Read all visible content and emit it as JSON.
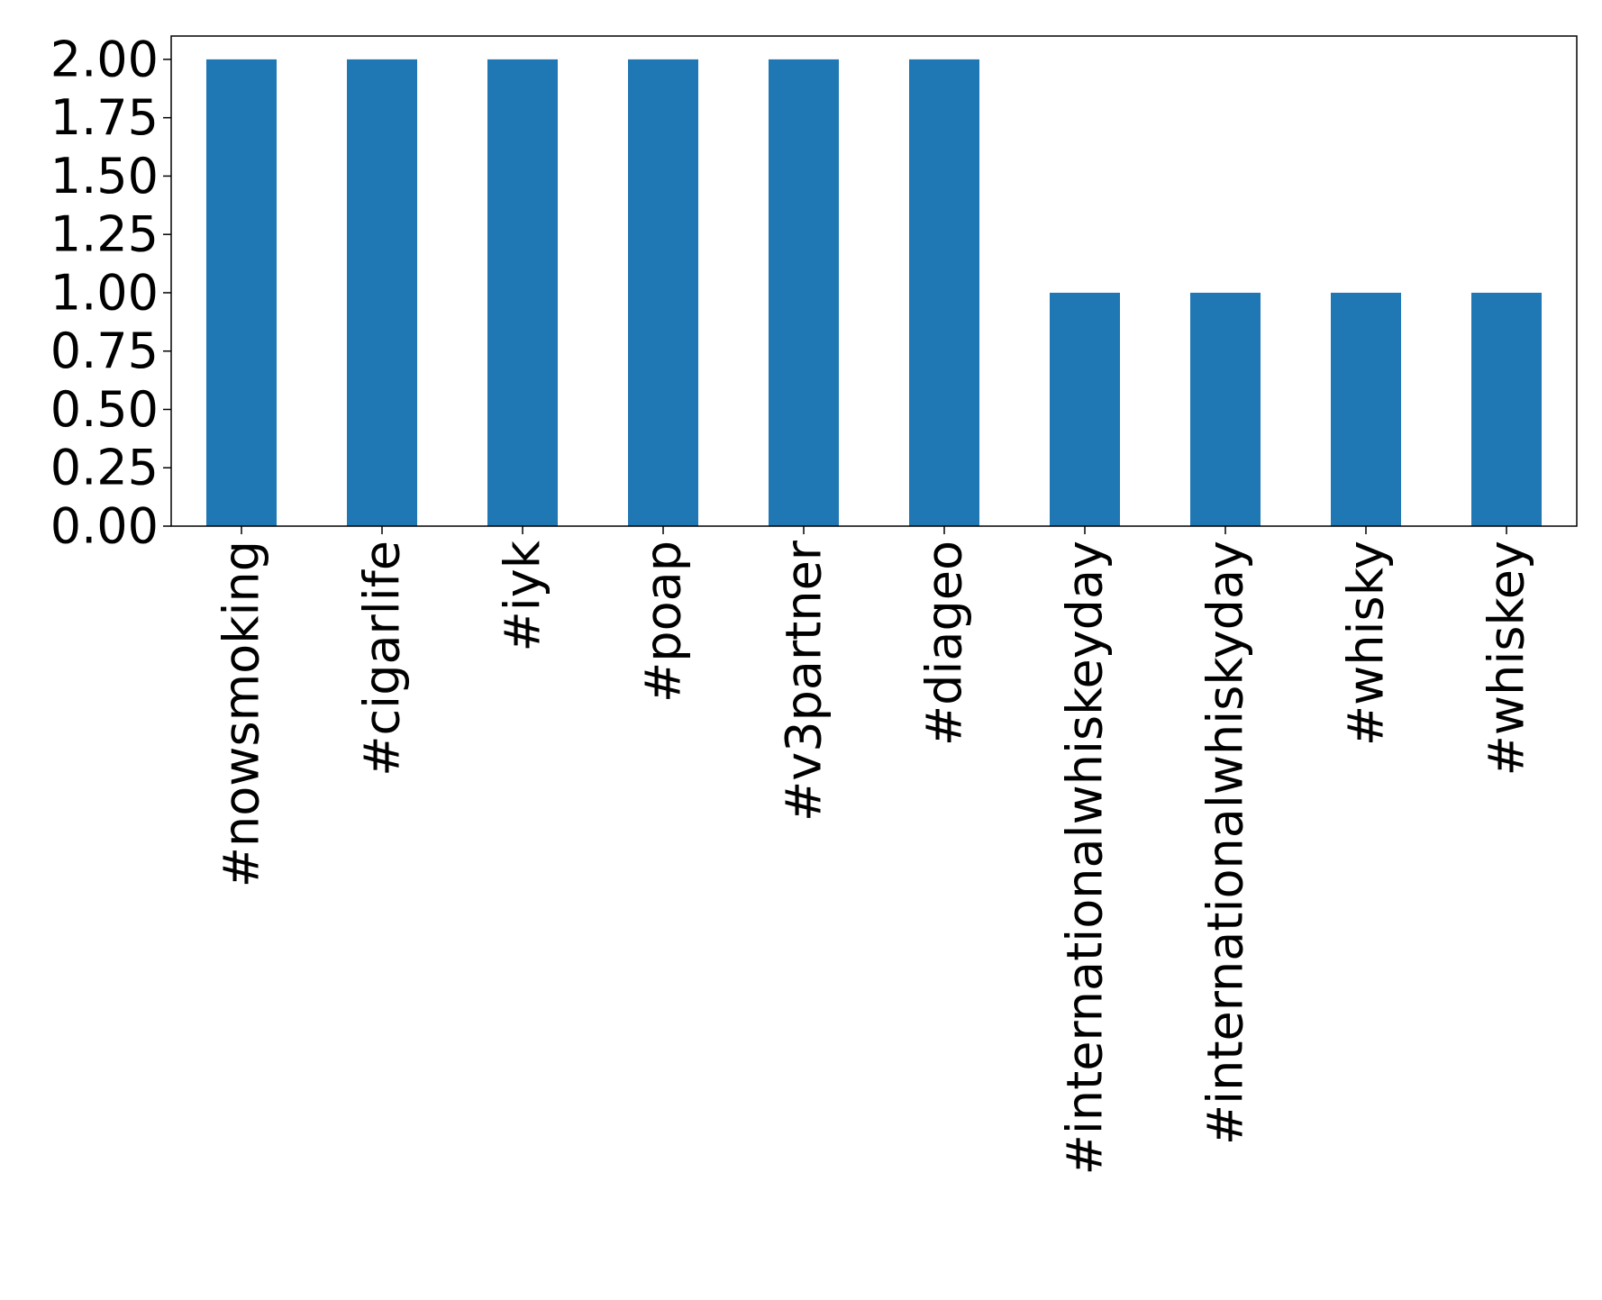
{
  "chart_data": {
    "type": "bar",
    "title": "",
    "xlabel": "",
    "ylabel": "",
    "categories": [
      "#nowsmoking",
      "#cigarlife",
      "#iyk",
      "#poap",
      "#v3partner",
      "#diageo",
      "#internationalwhiskeyday",
      "#internationalwhiskyday",
      "#whisky",
      "#whiskey"
    ],
    "values": [
      2,
      2,
      2,
      2,
      2,
      2,
      1,
      1,
      1,
      1
    ],
    "ylim": [
      0,
      2.1
    ],
    "yticks": [
      "0.00",
      "0.25",
      "0.50",
      "0.75",
      "1.00",
      "1.25",
      "1.50",
      "1.75",
      "2.00"
    ],
    "bar_color": "#1f77b4",
    "grid": false,
    "legend": "none"
  }
}
